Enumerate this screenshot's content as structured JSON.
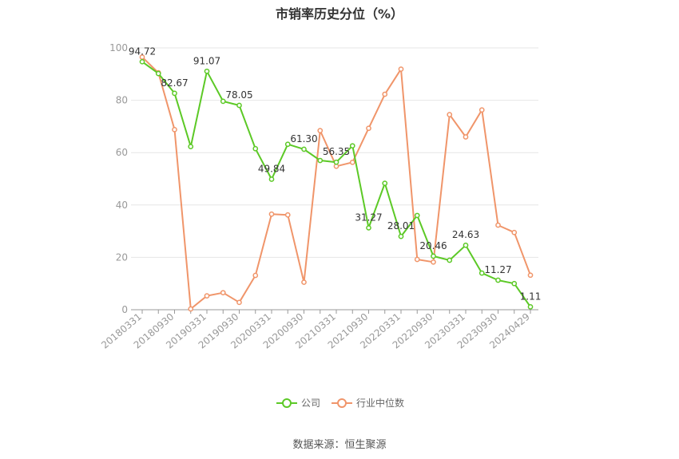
{
  "chart_data": {
    "type": "line",
    "title": "市销率历史分位（%）",
    "source": "数据来源：恒生聚源",
    "ylim": [
      0,
      100
    ],
    "yticks": [
      0,
      20,
      40,
      60,
      80,
      100
    ],
    "x_tick_labels": [
      "20180331",
      "20180930",
      "20190331",
      "20190930",
      "20200331",
      "20200930",
      "20210331",
      "20210930",
      "20220331",
      "20220930",
      "20230331",
      "20230930",
      "20240429"
    ],
    "x": [
      "20180331",
      "20180630",
      "20180930",
      "20181231",
      "20190331",
      "20190630",
      "20190930",
      "20191231",
      "20200331",
      "20200630",
      "20200930",
      "20201231",
      "20210331",
      "20210630",
      "20210930",
      "20211231",
      "20220331",
      "20220630",
      "20220930",
      "20221231",
      "20230331",
      "20230630",
      "20230930",
      "20231231",
      "20240429"
    ],
    "series": [
      {
        "name": "公司",
        "color": "#5cc926",
        "values": [
          94.72,
          90.2,
          82.67,
          62.3,
          91.07,
          79.6,
          78.05,
          61.5,
          49.84,
          63.2,
          61.3,
          57.0,
          56.35,
          62.6,
          31.27,
          48.3,
          28.01,
          36.0,
          20.46,
          18.9,
          24.63,
          14.0,
          11.27,
          10.0,
          1.11
        ],
        "labels": [
          "94.72",
          "",
          "82.67",
          "",
          "91.07",
          "",
          "78.05",
          "",
          "49.84",
          "",
          "61.30",
          "",
          "56.35",
          "",
          "31.27",
          "",
          "28.01",
          "",
          "20.46",
          "",
          "24.63",
          "",
          "11.27",
          "",
          "1.11"
        ]
      },
      {
        "name": "行业中位数",
        "color": "#f0956a",
        "values": [
          96.5,
          90.5,
          68.8,
          0.3,
          5.3,
          6.5,
          2.8,
          13.1,
          36.5,
          36.2,
          10.5,
          68.4,
          54.8,
          56.3,
          69.3,
          82.3,
          91.9,
          19.2,
          18.2,
          74.5,
          66.0,
          76.3,
          32.3,
          29.5,
          13.2
        ]
      }
    ],
    "grid": true,
    "legend_position": "bottom-center"
  }
}
